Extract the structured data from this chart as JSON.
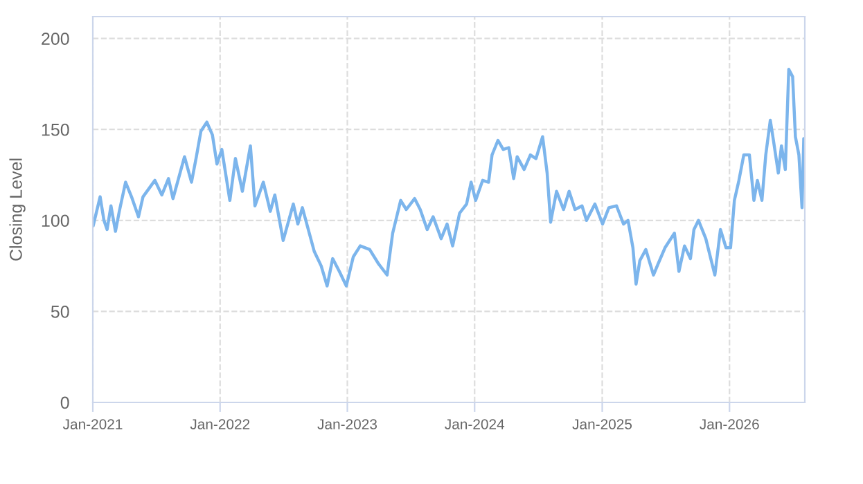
{
  "chart_data": {
    "type": "line",
    "ylabel": "Closing Level",
    "xlim": [
      "2021-01-01",
      "2026-08-05"
    ],
    "ylim": [
      0,
      212
    ],
    "xticks": [
      {
        "value": "2021-01-01",
        "label": "Jan-2021"
      },
      {
        "value": "2022-01-01",
        "label": "Jan-2022"
      },
      {
        "value": "2023-01-01",
        "label": "Jan-2023"
      },
      {
        "value": "2024-01-01",
        "label": "Jan-2024"
      },
      {
        "value": "2025-01-01",
        "label": "Jan-2025"
      },
      {
        "value": "2026-01-01",
        "label": "Jan-2026"
      }
    ],
    "yticks": [
      0,
      50,
      100,
      150,
      200
    ],
    "grid": true,
    "marker": "none",
    "line_style": "solid",
    "x": [
      "2021-01-02",
      "2021-01-22",
      "2021-02-02",
      "2021-02-11",
      "2021-02-22",
      "2021-03-07",
      "2021-03-18",
      "2021-04-05",
      "2021-04-22",
      "2021-05-12",
      "2021-05-25",
      "2021-06-28",
      "2021-07-18",
      "2021-08-06",
      "2021-08-19",
      "2021-09-21",
      "2021-10-11",
      "2021-10-25",
      "2021-11-07",
      "2021-11-24",
      "2021-12-10",
      "2021-12-23",
      "2022-01-06",
      "2022-01-29",
      "2022-02-14",
      "2022-03-06",
      "2022-03-29",
      "2022-04-11",
      "2022-05-05",
      "2022-05-25",
      "2022-06-07",
      "2022-07-01",
      "2022-07-30",
      "2022-08-12",
      "2022-08-25",
      "2022-09-28",
      "2022-10-18",
      "2022-11-04",
      "2022-11-20",
      "2022-12-09",
      "2022-12-29",
      "2023-01-18",
      "2023-02-07",
      "2023-03-06",
      "2023-04-01",
      "2023-04-25",
      "2023-05-11",
      "2023-06-03",
      "2023-06-19",
      "2023-07-13",
      "2023-07-29",
      "2023-08-18",
      "2023-09-04",
      "2023-09-27",
      "2023-10-14",
      "2023-10-30",
      "2023-11-19",
      "2023-12-09",
      "2023-12-22",
      "2024-01-04",
      "2024-01-24",
      "2024-02-10",
      "2024-02-20",
      "2024-03-08",
      "2024-03-23",
      "2024-04-08",
      "2024-04-22",
      "2024-05-02",
      "2024-05-22",
      "2024-06-09",
      "2024-06-25",
      "2024-07-14",
      "2024-07-27",
      "2024-08-06",
      "2024-08-23",
      "2024-09-12",
      "2024-09-28",
      "2024-10-15",
      "2024-11-04",
      "2024-11-17",
      "2024-12-11",
      "2025-01-02",
      "2025-01-20",
      "2025-02-11",
      "2025-03-03",
      "2025-03-16",
      "2025-03-30",
      "2025-04-08",
      "2025-04-19",
      "2025-05-06",
      "2025-05-28",
      "2025-06-10",
      "2025-06-30",
      "2025-07-27",
      "2025-08-09",
      "2025-08-25",
      "2025-09-11",
      "2025-09-21",
      "2025-10-04",
      "2025-10-25",
      "2025-11-20",
      "2025-12-06",
      "2025-12-22",
      "2026-01-04",
      "2026-01-15",
      "2026-01-28",
      "2026-02-11",
      "2026-02-27",
      "2026-03-12",
      "2026-03-22",
      "2026-04-04",
      "2026-04-15",
      "2026-04-28",
      "2026-05-07",
      "2026-05-21",
      "2026-05-30",
      "2026-06-10",
      "2026-06-20",
      "2026-07-01",
      "2026-07-09",
      "2026-07-19",
      "2026-07-28",
      "2026-08-02"
    ],
    "series": [
      {
        "color": "#7cb5ec",
        "values": [
          97,
          113,
          100,
          95,
          108,
          94,
          105,
          121,
          113,
          102,
          113,
          122,
          114,
          123,
          112,
          135,
          121,
          135,
          149,
          154,
          147,
          131,
          139,
          111,
          134,
          116,
          141,
          108,
          121,
          105,
          114,
          89,
          109,
          98,
          107,
          83,
          75,
          64,
          79,
          72,
          64,
          80,
          86,
          84,
          76,
          70,
          93,
          111,
          106,
          112,
          106,
          95,
          102,
          90,
          98,
          86,
          104,
          109,
          121,
          111,
          122,
          121,
          136,
          144,
          139,
          140,
          123,
          135,
          128,
          136,
          134,
          146,
          126,
          99,
          116,
          106,
          116,
          106,
          108,
          100,
          109,
          98,
          107,
          108,
          98,
          100,
          85,
          65,
          78,
          84,
          70,
          76,
          85,
          93,
          72,
          86,
          79,
          95,
          100,
          90,
          70,
          95,
          85,
          85,
          111,
          122,
          136,
          136,
          111,
          122,
          111,
          136,
          155,
          144,
          126,
          141,
          128,
          183,
          179,
          146,
          136,
          107,
          145
        ]
      }
    ]
  }
}
